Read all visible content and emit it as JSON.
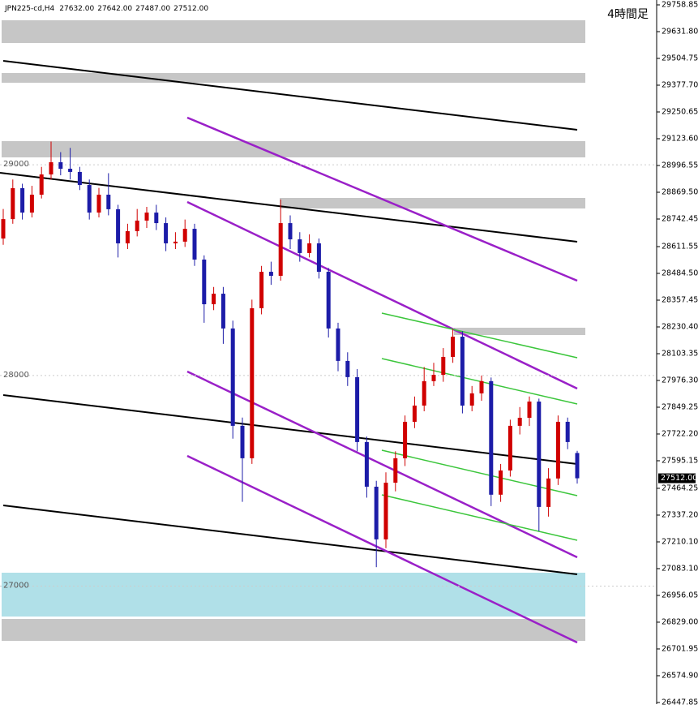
{
  "chart_data": {
    "type": "candlestick",
    "symbol": "JPN225-cd,H4",
    "ohlc_labels": [
      "27632.00",
      "27642.00",
      "27487.00",
      "27512.00"
    ],
    "title": "4時間足",
    "up_color": "#d00000",
    "down_color": "#1c1ca8",
    "open": [
      28650,
      28742,
      28889,
      28773,
      28858,
      28954,
      29012,
      28981,
      28966,
      28904,
      28773,
      28858,
      28789,
      28627,
      28685,
      28735,
      28773,
      28723,
      28627,
      28635,
      28696,
      28550,
      28338,
      28388,
      28223,
      27761,
      27607,
      28319,
      28492,
      28473,
      28723,
      28646,
      28581,
      28627,
      28492,
      28223,
      28069,
      27992,
      27684,
      27472,
      27222,
      27491,
      27607,
      27780,
      27857,
      27973,
      28003,
      28088,
      28184,
      27857,
      27915,
      27973,
      27434,
      27549,
      27761,
      27799,
      27876,
      27376,
      27511,
      27780,
      27632
    ],
    "high": [
      28790,
      28930,
      28910,
      28900,
      28990,
      29110,
      29060,
      29080,
      28990,
      28930,
      28890,
      28960,
      28810,
      28720,
      28790,
      28800,
      28810,
      28750,
      28680,
      28740,
      28720,
      28570,
      28420,
      28420,
      28260,
      27800,
      28360,
      28520,
      28540,
      28835,
      28760,
      28680,
      28670,
      28650,
      28510,
      28250,
      28110,
      28030,
      27710,
      27500,
      27540,
      27640,
      27810,
      27900,
      28040,
      28060,
      28130,
      28220,
      28210,
      27950,
      28000,
      27990,
      27580,
      27790,
      27850,
      27900,
      27890,
      27560,
      27810,
      27800,
      27642
    ],
    "low": [
      28620,
      28720,
      28740,
      28750,
      28840,
      28930,
      28950,
      28930,
      28880,
      28740,
      28750,
      28760,
      28560,
      28600,
      28660,
      28700,
      28690,
      28590,
      28600,
      28610,
      28520,
      28250,
      28310,
      28150,
      27700,
      27400,
      27580,
      28290,
      28430,
      28450,
      28600,
      28540,
      28560,
      28460,
      28180,
      28020,
      27950,
      27640,
      27420,
      27090,
      27180,
      27450,
      27570,
      27750,
      27830,
      27950,
      27970,
      28060,
      27820,
      27830,
      27880,
      27380,
      27400,
      27520,
      27720,
      27760,
      27260,
      27330,
      27480,
      27650,
      27487
    ],
    "close": [
      28742,
      28889,
      28773,
      28858,
      28954,
      29012,
      28981,
      28966,
      28904,
      28773,
      28858,
      28789,
      28627,
      28685,
      28735,
      28773,
      28723,
      28627,
      28635,
      28696,
      28550,
      28338,
      28388,
      28223,
      27761,
      27607,
      28319,
      28492,
      28473,
      28723,
      28646,
      28581,
      28627,
      28492,
      28223,
      28069,
      27992,
      27684,
      27472,
      27222,
      27491,
      27607,
      27780,
      27857,
      27973,
      28003,
      28088,
      28184,
      27857,
      27915,
      27973,
      27434,
      27549,
      27761,
      27799,
      27876,
      27376,
      27511,
      27780,
      27684,
      27512
    ],
    "price_label": {
      "value": 27512,
      "label": "27512.00"
    },
    "levels": [
      29000,
      28000,
      27000
    ],
    "ylim": [
      26440,
      29782
    ],
    "yticks": [
      29758.85,
      {
        "value": 29631.8,
        "label": "29631.80"
      },
      29504.75,
      {
        "value": 29377.7,
        "label": "29377.70"
      },
      29250.65,
      {
        "value": 29123.6,
        "label": "29123.60"
      },
      28996.55,
      {
        "value": 28869.5,
        "label": "28869.50"
      },
      28742.45,
      28611.55,
      {
        "value": 28484.5,
        "label": "28484.50"
      },
      28357.45,
      {
        "value": 28230.4,
        "label": "28230.40"
      },
      28103.35,
      {
        "value": 27976.3,
        "label": "27976.30"
      },
      27849.25,
      {
        "value": 27722.2,
        "label": "27722.20"
      },
      27595.15,
      27464.25,
      {
        "value": 27337.2,
        "label": "27337.20"
      },
      {
        "value": 27210.1,
        "label": "27210.10"
      },
      {
        "value": 27083.1,
        "label": "27083.10"
      },
      26956.05,
      {
        "value": 26829,
        "label": "26829.00"
      },
      26701.95,
      {
        "value": 26574.9,
        "label": "26574.90"
      },
      26447.85
    ]
  }
}
